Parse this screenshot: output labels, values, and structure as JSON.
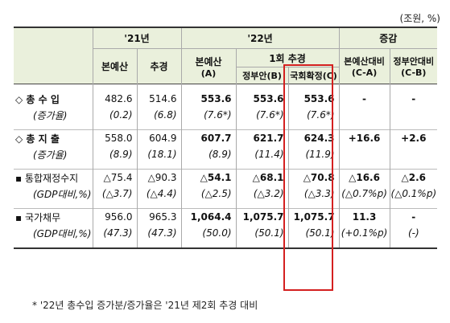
{
  "unit": "(조원, %)",
  "header": {
    "y21": "'21년",
    "y22": "'22년",
    "change": "증감",
    "orig": "본예산",
    "supp": "추경",
    "orig_a": "본예산",
    "orig_a_code": "(A)",
    "first_supp": "1회  추경",
    "gov": "정부안(B)",
    "final": "국회확정(C)",
    "vs_orig": "본예산대비",
    "vs_orig_code": "(C-A)",
    "vs_gov": "정부안대비",
    "vs_gov_code": "(C-B)"
  },
  "rows": {
    "revenue": {
      "label": "◇ 총 수 입",
      "v": [
        "482.6",
        "514.6",
        "553.6",
        "553.6",
        "553.6",
        "-",
        "-"
      ]
    },
    "revenue_rate": {
      "label": "(증가율)",
      "v": [
        "(0.2)",
        "(6.8)",
        "(7.6*)",
        "(7.6*)",
        "(7.6*)",
        "",
        ""
      ]
    },
    "expenditure": {
      "label": "◇ 총 지 출",
      "v": [
        "558.0",
        "604.9",
        "607.7",
        "621.7",
        "624.3",
        "+16.6",
        "+2.6"
      ]
    },
    "expenditure_rate": {
      "label": "(증가율)",
      "v": [
        "(8.9)",
        "(18.1)",
        "(8.9)",
        "(11.4)",
        "(11.9)",
        "",
        ""
      ]
    },
    "balance": {
      "label": "▪ 통합재정수지",
      "v": [
        "△75.4",
        "△90.3",
        "△54.1",
        "△68.1",
        "△70.8",
        "△16.6",
        "△2.6"
      ]
    },
    "balance_gdp": {
      "label": "(GDP대비,%)",
      "v": [
        "(△3.7)",
        "(△4.4)",
        "(△2.5)",
        "(△3.2)",
        "(△3.3)",
        "(△0.7%p)",
        "(△0.1%p)"
      ]
    },
    "debt": {
      "label": "▪ 국가채무",
      "v": [
        "956.0",
        "965.3",
        "1,064.4",
        "1,075.7",
        "1,075.7",
        "11.3",
        "-"
      ]
    },
    "debt_gdp": {
      "label": "(GDP대비,%)",
      "v": [
        "(47.3)",
        "(47.3)",
        "(50.0)",
        "(50.1)",
        "(50.1)",
        "(+0.1%p)",
        "(-)"
      ]
    }
  },
  "note": "*  '22년 총수입 증가분/증가율은 '21년 제2회 추경 대비"
}
